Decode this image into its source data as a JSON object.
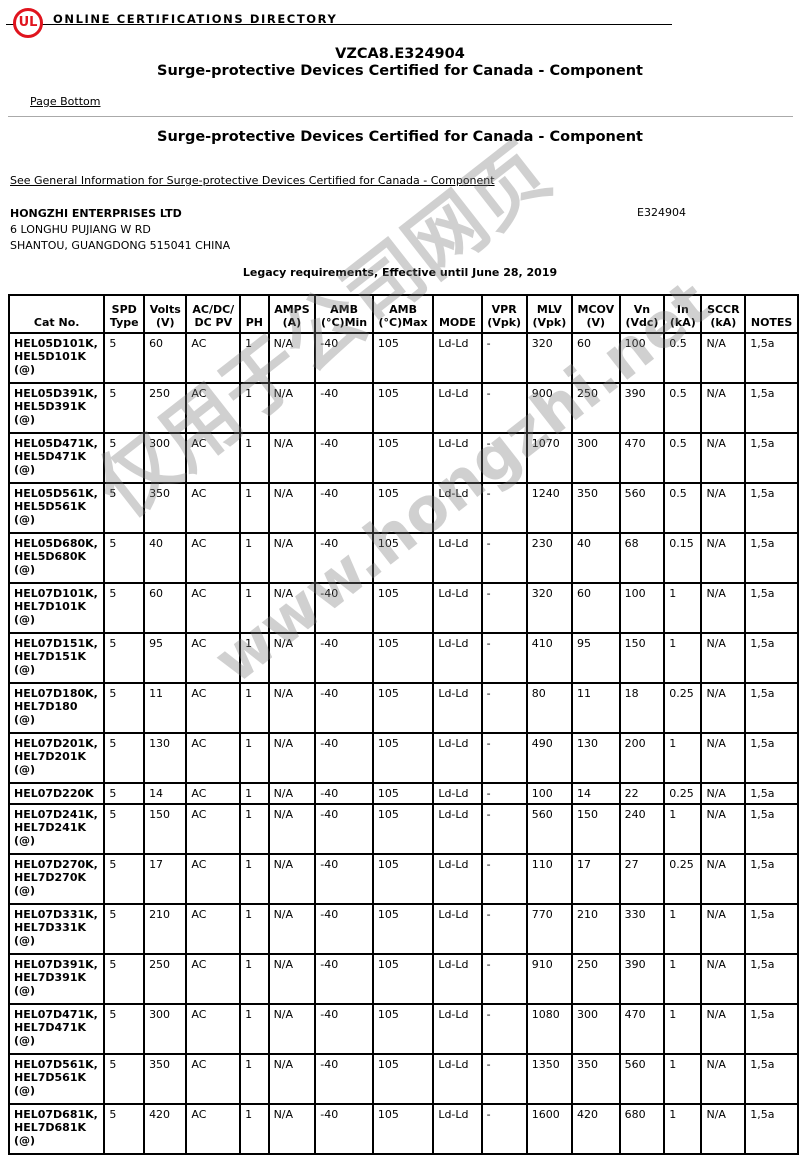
{
  "header": {
    "logo": "UL",
    "directory": "ONLINE CERTIFICATIONS DIRECTORY"
  },
  "title": {
    "code": "VZCA8.E324904",
    "name": "Surge-protective Devices Certified for Canada - Component"
  },
  "page_bottom_link": "Page Bottom",
  "section_title": "Surge-protective Devices Certified for Canada - Component",
  "general_info_link": "See General Information for Surge-protective Devices Certified for Canada - Component",
  "company": {
    "name": "HONGZHI ENTERPRISES LTD",
    "address1": "6 LONGHU PUJIANG W RD",
    "address2": "SHANTOU, GUANGDONG 515041 CHINA",
    "file_no": "E324904"
  },
  "legacy": "Legacy requirements, Effective until June 28, 2019",
  "watermark": {
    "text1": "仅用于公司网页",
    "text2": "www.hongzhi.net"
  },
  "table": {
    "headers": [
      "Cat No.",
      "SPD Type",
      "Volts (V)",
      "AC/DC/ DC PV",
      "PH",
      "AMPS (A)",
      "AMB (°C)Min",
      "AMB (°C)Max",
      "MODE",
      "VPR (Vpk)",
      "MLV (Vpk)",
      "MCOV (V)",
      "Vn (Vdc)",
      "In (kA)",
      "SCCR (kA)",
      "NOTES"
    ],
    "rows": [
      [
        "HEL05D101K, HEL5D101K (@)",
        "5",
        "60",
        "AC",
        "1",
        "N/A",
        "-40",
        "105",
        "Ld-Ld",
        "-",
        "320",
        "60",
        "100",
        "0.5",
        "N/A",
        "1,5a"
      ],
      [
        "HEL05D391K, HEL5D391K (@)",
        "5",
        "250",
        "AC",
        "1",
        "N/A",
        "-40",
        "105",
        "Ld-Ld",
        "-",
        "900",
        "250",
        "390",
        "0.5",
        "N/A",
        "1,5a"
      ],
      [
        "HEL05D471K, HEL5D471K (@)",
        "5",
        "300",
        "AC",
        "1",
        "N/A",
        "-40",
        "105",
        "Ld-Ld",
        "-",
        "1070",
        "300",
        "470",
        "0.5",
        "N/A",
        "1,5a"
      ],
      [
        "HEL05D561K, HEL5D561K (@)",
        "5",
        "350",
        "AC",
        "1",
        "N/A",
        "-40",
        "105",
        "Ld-Ld",
        "-",
        "1240",
        "350",
        "560",
        "0.5",
        "N/A",
        "1,5a"
      ],
      [
        "HEL05D680K, HEL5D680K (@)",
        "5",
        "40",
        "AC",
        "1",
        "N/A",
        "-40",
        "105",
        "Ld-Ld",
        "-",
        "230",
        "40",
        "68",
        "0.15",
        "N/A",
        "1,5a"
      ],
      [
        "HEL07D101K, HEL7D101K (@)",
        "5",
        "60",
        "AC",
        "1",
        "N/A",
        "-40",
        "105",
        "Ld-Ld",
        "-",
        "320",
        "60",
        "100",
        "1",
        "N/A",
        "1,5a"
      ],
      [
        "HEL07D151K, HEL7D151K (@)",
        "5",
        "95",
        "AC",
        "1",
        "N/A",
        "-40",
        "105",
        "Ld-Ld",
        "-",
        "410",
        "95",
        "150",
        "1",
        "N/A",
        "1,5a"
      ],
      [
        "HEL07D180K, HEL7D180 (@)",
        "5",
        "11",
        "AC",
        "1",
        "N/A",
        "-40",
        "105",
        "Ld-Ld",
        "-",
        "80",
        "11",
        "18",
        "0.25",
        "N/A",
        "1,5a"
      ],
      [
        "HEL07D201K, HEL7D201K (@)",
        "5",
        "130",
        "AC",
        "1",
        "N/A",
        "-40",
        "105",
        "Ld-Ld",
        "-",
        "490",
        "130",
        "200",
        "1",
        "N/A",
        "1,5a"
      ],
      [
        "HEL07D220K",
        "5",
        "14",
        "AC",
        "1",
        "N/A",
        "-40",
        "105",
        "Ld-Ld",
        "-",
        "100",
        "14",
        "22",
        "0.25",
        "N/A",
        "1,5a"
      ],
      [
        "HEL07D241K, HEL7D241K (@)",
        "5",
        "150",
        "AC",
        "1",
        "N/A",
        "-40",
        "105",
        "Ld-Ld",
        "-",
        "560",
        "150",
        "240",
        "1",
        "N/A",
        "1,5a"
      ],
      [
        "HEL07D270K, HEL7D270K (@)",
        "5",
        "17",
        "AC",
        "1",
        "N/A",
        "-40",
        "105",
        "Ld-Ld",
        "-",
        "110",
        "17",
        "27",
        "0.25",
        "N/A",
        "1,5a"
      ],
      [
        "HEL07D331K, HEL7D331K (@)",
        "5",
        "210",
        "AC",
        "1",
        "N/A",
        "-40",
        "105",
        "Ld-Ld",
        "-",
        "770",
        "210",
        "330",
        "1",
        "N/A",
        "1,5a"
      ],
      [
        "HEL07D391K, HEL7D391K (@)",
        "5",
        "250",
        "AC",
        "1",
        "N/A",
        "-40",
        "105",
        "Ld-Ld",
        "-",
        "910",
        "250",
        "390",
        "1",
        "N/A",
        "1,5a"
      ],
      [
        "HEL07D471K, HEL7D471K (@)",
        "5",
        "300",
        "AC",
        "1",
        "N/A",
        "-40",
        "105",
        "Ld-Ld",
        "-",
        "1080",
        "300",
        "470",
        "1",
        "N/A",
        "1,5a"
      ],
      [
        "HEL07D561K, HEL7D561K (@)",
        "5",
        "350",
        "AC",
        "1",
        "N/A",
        "-40",
        "105",
        "Ld-Ld",
        "-",
        "1350",
        "350",
        "560",
        "1",
        "N/A",
        "1,5a"
      ],
      [
        "HEL07D681K, HEL7D681K (@)",
        "5",
        "420",
        "AC",
        "1",
        "N/A",
        "-40",
        "105",
        "Ld-Ld",
        "-",
        "1600",
        "420",
        "680",
        "1",
        "N/A",
        "1,5a"
      ]
    ]
  }
}
